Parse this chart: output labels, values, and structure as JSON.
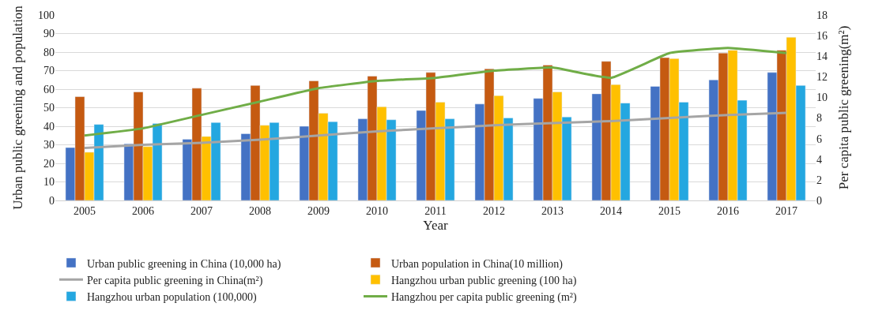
{
  "chart_data": {
    "type": "bar",
    "xlabel": "Year",
    "ylabel": "Urban public greening and population",
    "y2label": "Per capita public greening(m²)",
    "categories": [
      "2005",
      "2006",
      "2007",
      "2008",
      "2009",
      "2010",
      "2011",
      "2012",
      "2013",
      "2014",
      "2015",
      "2016",
      "2017"
    ],
    "series": [
      {
        "name": "Urban public greening in China (10,000 ha)",
        "color": "#4472c4",
        "values": [
          28.5,
          30.5,
          33,
          36,
          40,
          44,
          48.5,
          52,
          55,
          57.5,
          61.5,
          65,
          69
        ]
      },
      {
        "name": "Urban population in China(10 million)",
        "color": "#c55a11",
        "values": [
          56,
          58.5,
          60.5,
          62,
          64.5,
          67,
          69,
          71,
          73,
          75,
          77,
          79.5,
          81
        ]
      },
      {
        "name": "Per capita public greening in China(m²)",
        "type": "line",
        "axis": "y2",
        "color": "#a5a5a5",
        "values": [
          5.1,
          5.4,
          5.6,
          5.9,
          6.3,
          6.7,
          7.0,
          7.3,
          7.5,
          7.7,
          8.0,
          8.3,
          8.5
        ]
      },
      {
        "name": "Hangzhou urban public greening (100 ha)",
        "color": "#ffc000",
        "values": [
          26,
          29,
          34.5,
          40.5,
          47,
          50.5,
          53,
          56.5,
          58.5,
          62.5,
          76.5,
          81,
          88
        ]
      },
      {
        "name": "Hangzhou urban population (100,000)",
        "color": "#24a7e0",
        "values": [
          41,
          41.5,
          42,
          42,
          42.5,
          43.5,
          44,
          44.5,
          45,
          52.5,
          53,
          54,
          62
        ]
      },
      {
        "name": "Hangzhou per capita public greening (m²)",
        "type": "line",
        "axis": "y2",
        "color": "#70ad47",
        "values": [
          6.3,
          7.0,
          8.3,
          9.6,
          10.9,
          11.6,
          11.9,
          12.6,
          12.9,
          11.9,
          14.3,
          14.8,
          14.3
        ]
      }
    ],
    "ylim": [
      0,
      100
    ],
    "yticks": [
      0,
      10,
      20,
      30,
      40,
      50,
      60,
      70,
      80,
      90,
      100
    ],
    "y2lim": [
      0,
      18
    ],
    "y2ticks": [
      0,
      2,
      4,
      6,
      8,
      10,
      12,
      14,
      16,
      18
    ],
    "grid": "y",
    "legend": "bottom",
    "marker": "none",
    "line_style": "solid"
  }
}
